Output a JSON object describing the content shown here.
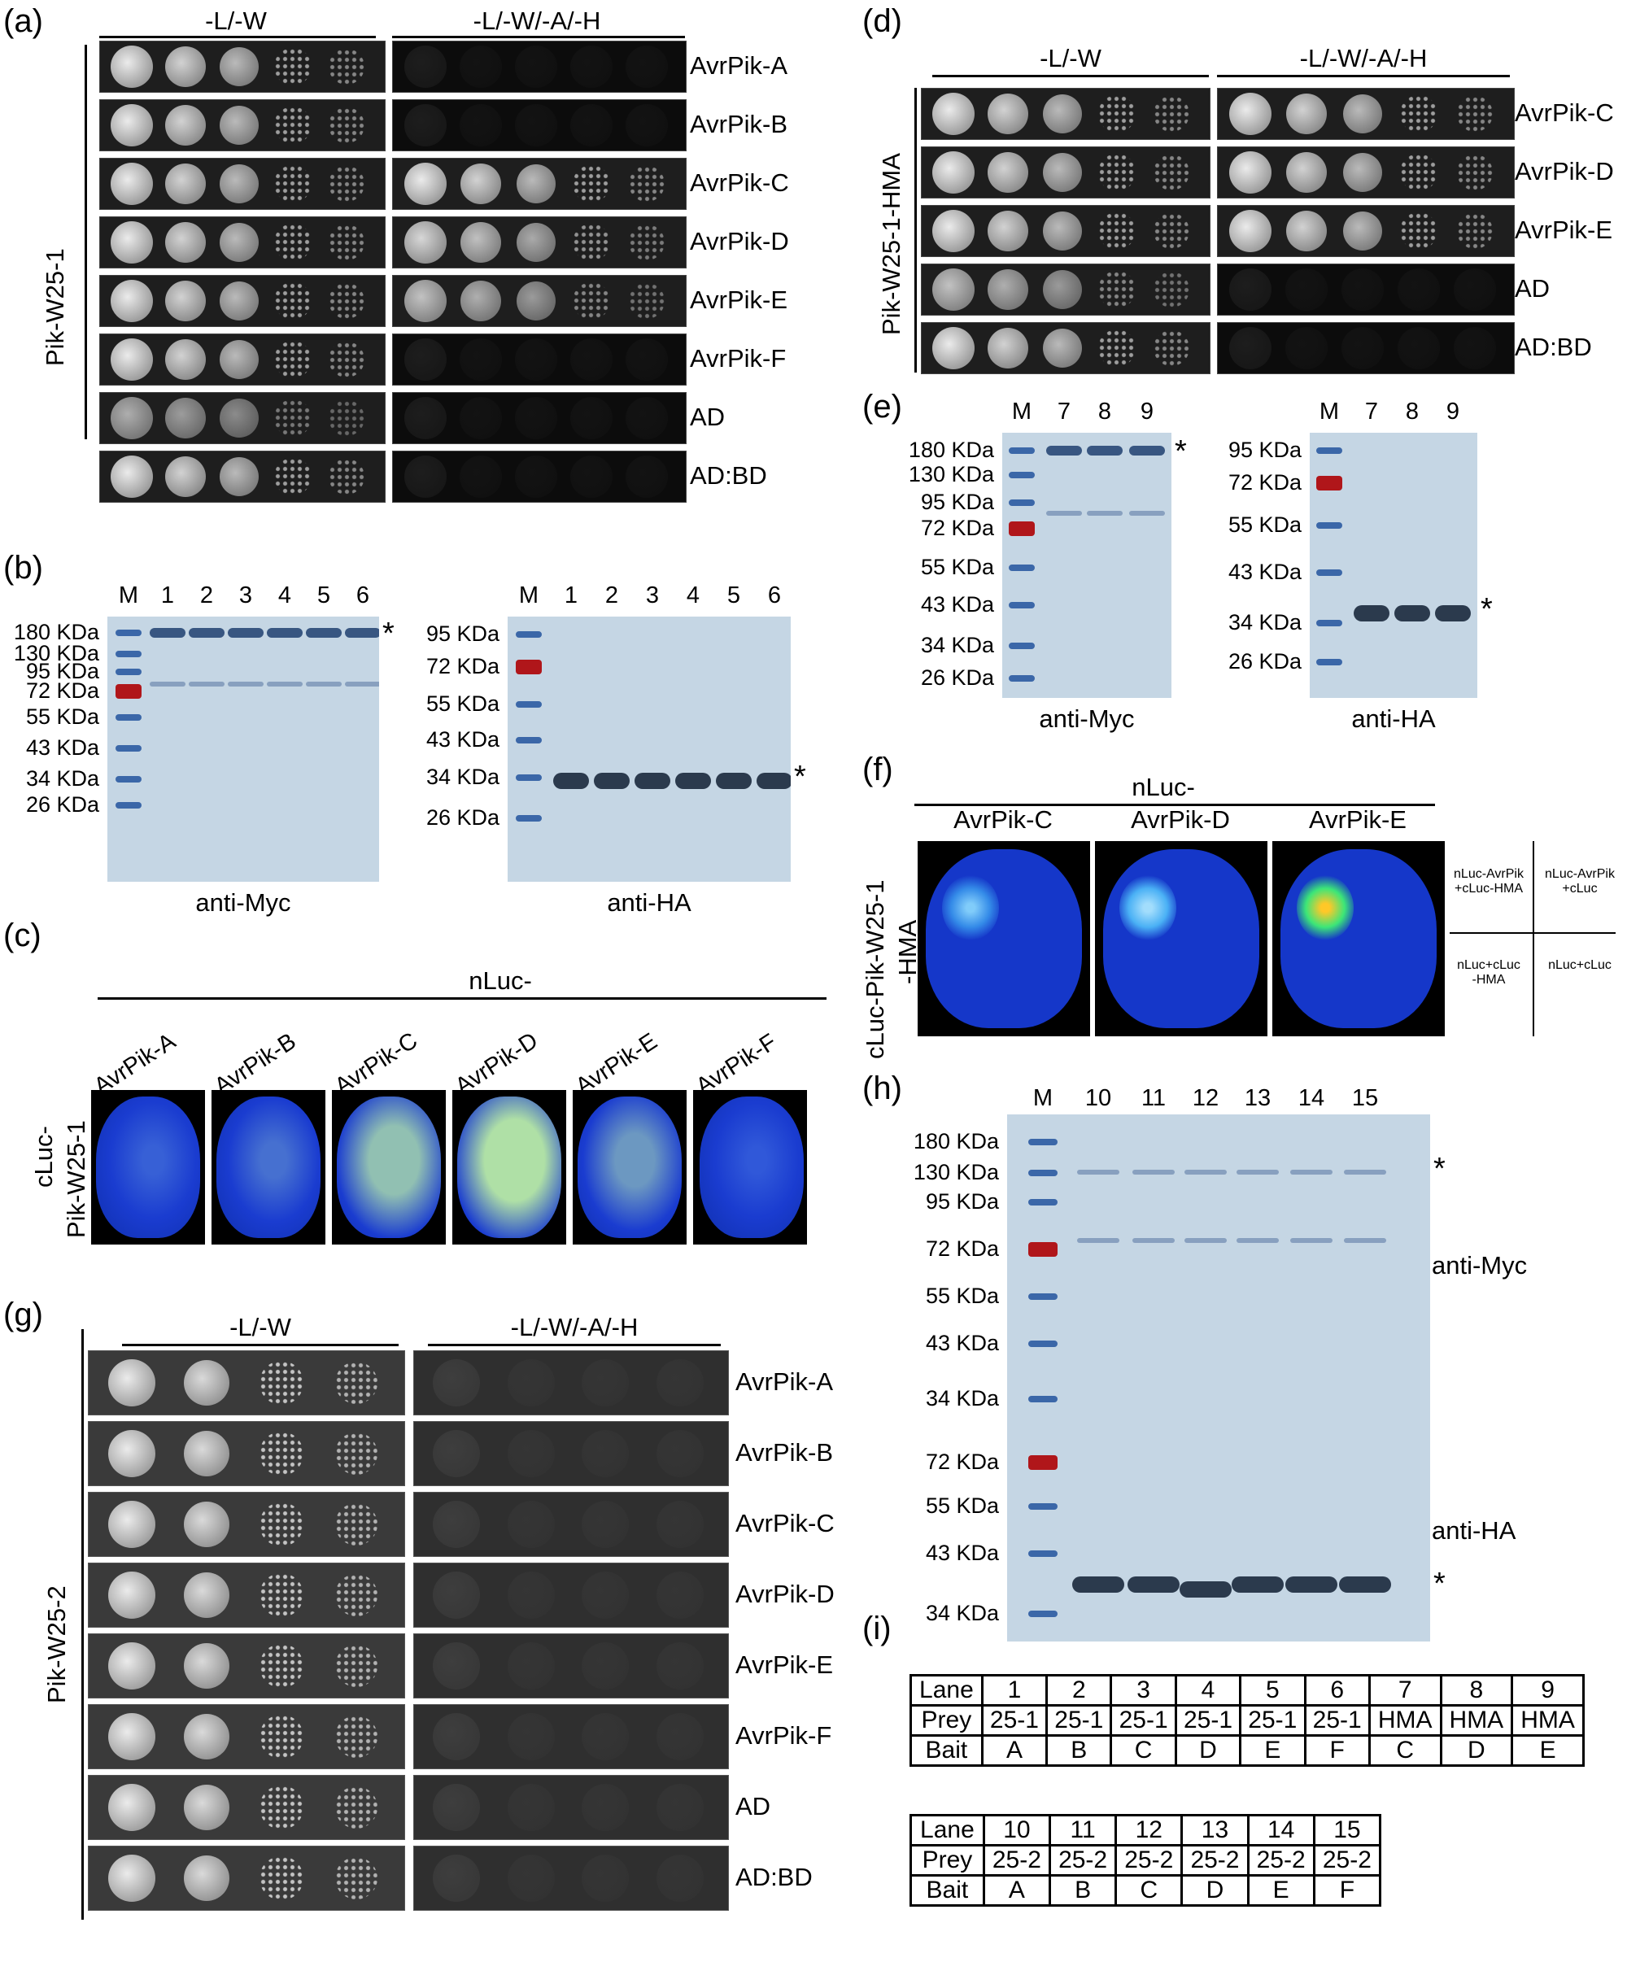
{
  "panel_labels": [
    "(a)",
    "(b)",
    "(c)",
    "(d)",
    "(e)",
    "(f)",
    "(g)",
    "(h)",
    "(i)"
  ],
  "panel_a": {
    "col_headers": [
      "-L/-W",
      "-L/-W/-A/-H"
    ],
    "side_label": "Pik-W25-1",
    "rows": [
      "AvrPik-A",
      "AvrPik-B",
      "AvrPik-C",
      "AvrPik-D",
      "AvrPik-E",
      "AvrPik-F",
      "AD",
      "AD:BD"
    ]
  },
  "panel_b": {
    "left": {
      "lanes": [
        "M",
        "1",
        "2",
        "3",
        "4",
        "5",
        "6"
      ],
      "markers": [
        "180 KDa",
        "130 KDa",
        "95 KDa",
        "72 KDa",
        "55 KDa",
        "43 KDa",
        "34 KDa",
        "26 KDa"
      ],
      "caption": "anti-Myc",
      "star": "*"
    },
    "right": {
      "lanes": [
        "M",
        "1",
        "2",
        "3",
        "4",
        "5",
        "6"
      ],
      "markers": [
        "95 KDa",
        "72 KDa",
        "55 KDa",
        "43 KDa",
        "34 KDa",
        "26 KDa"
      ],
      "caption": "anti-HA",
      "star": "*"
    }
  },
  "panel_c": {
    "header": "nLuc-",
    "side_label_top": "cLuc-",
    "side_label_bottom": "Pik-W25-1",
    "columns": [
      "AvrPik-A",
      "AvrPik-B",
      "AvrPik-C",
      "AvrPik-D",
      "AvrPik-E",
      "AvrPik-F"
    ]
  },
  "panel_d": {
    "col_headers": [
      "-L/-W",
      "-L/-W/-A/-H"
    ],
    "side_label": "Pik-W25-1-HMA",
    "rows": [
      "AvrPik-C",
      "AvrPik-D",
      "AvrPik-E",
      "AD",
      "AD:BD"
    ]
  },
  "panel_e": {
    "left": {
      "lanes": [
        "M",
        "7",
        "8",
        "9"
      ],
      "markers": [
        "180 KDa",
        "130 KDa",
        "95 KDa",
        "72 KDa",
        "55 KDa",
        "43 KDa",
        "34 KDa",
        "26 KDa"
      ],
      "caption": "anti-Myc",
      "star": "*"
    },
    "right": {
      "lanes": [
        "M",
        "7",
        "8",
        "9"
      ],
      "markers": [
        "95 KDa",
        "72 KDa",
        "55 KDa",
        "43 KDa",
        "34 KDa",
        "26 KDa"
      ],
      "caption": "anti-HA",
      "star": "*"
    }
  },
  "panel_f": {
    "header": "nLuc-",
    "columns": [
      "AvrPik-C",
      "AvrPik-D",
      "AvrPik-E"
    ],
    "side_label_top": "cLuc-Pik-W25-1",
    "side_label_bottom": "-HMA",
    "legend": {
      "tl": [
        "nLuc-AvrPik",
        "+cLuc-HMA"
      ],
      "tr": [
        "nLuc-AvrPik",
        "+cLuc"
      ],
      "bl": [
        "nLuc+cLuc",
        "-HMA"
      ],
      "br": [
        "nLuc+cLuc"
      ]
    }
  },
  "panel_g": {
    "col_headers": [
      "-L/-W",
      "-L/-W/-A/-H"
    ],
    "side_label": "Pik-W25-2",
    "rows": [
      "AvrPik-A",
      "AvrPik-B",
      "AvrPik-C",
      "AvrPik-D",
      "AvrPik-E",
      "AvrPik-F",
      "AD",
      "AD:BD"
    ]
  },
  "panel_h": {
    "lanes": [
      "M",
      "10",
      "11",
      "12",
      "13",
      "14",
      "15"
    ],
    "top_markers": [
      "180 KDa",
      "130 KDa",
      "95 KDa",
      "72 KDa",
      "55 KDa",
      "43 KDa",
      "34 KDa"
    ],
    "bottom_markers": [
      "72 KDa",
      "55 KDa",
      "43 KDa",
      "34 KDa"
    ],
    "top_caption": "anti-Myc",
    "bottom_caption": "anti-HA",
    "star": "*"
  },
  "panel_i": {
    "table1": [
      [
        "Lane",
        "1",
        "2",
        "3",
        "4",
        "5",
        "6",
        "7",
        "8",
        "9"
      ],
      [
        "Prey",
        "25-1",
        "25-1",
        "25-1",
        "25-1",
        "25-1",
        "25-1",
        "HMA",
        "HMA",
        "HMA"
      ],
      [
        "Bait",
        "A",
        "B",
        "C",
        "D",
        "E",
        "F",
        "C",
        "D",
        "E"
      ]
    ],
    "table2": [
      [
        "Lane",
        "10",
        "11",
        "12",
        "13",
        "14",
        "15"
      ],
      [
        "Prey",
        "25-2",
        "25-2",
        "25-2",
        "25-2",
        "25-2",
        "25-2"
      ],
      [
        "Bait",
        "A",
        "B",
        "C",
        "D",
        "E",
        "F"
      ]
    ]
  },
  "colors": {
    "gel_background": "#c5d6e4",
    "marker_blue": "#3b67a8",
    "marker_red": "#b0161a",
    "luc_background": "#1537c9",
    "plate_background": "#1e1e1e"
  }
}
